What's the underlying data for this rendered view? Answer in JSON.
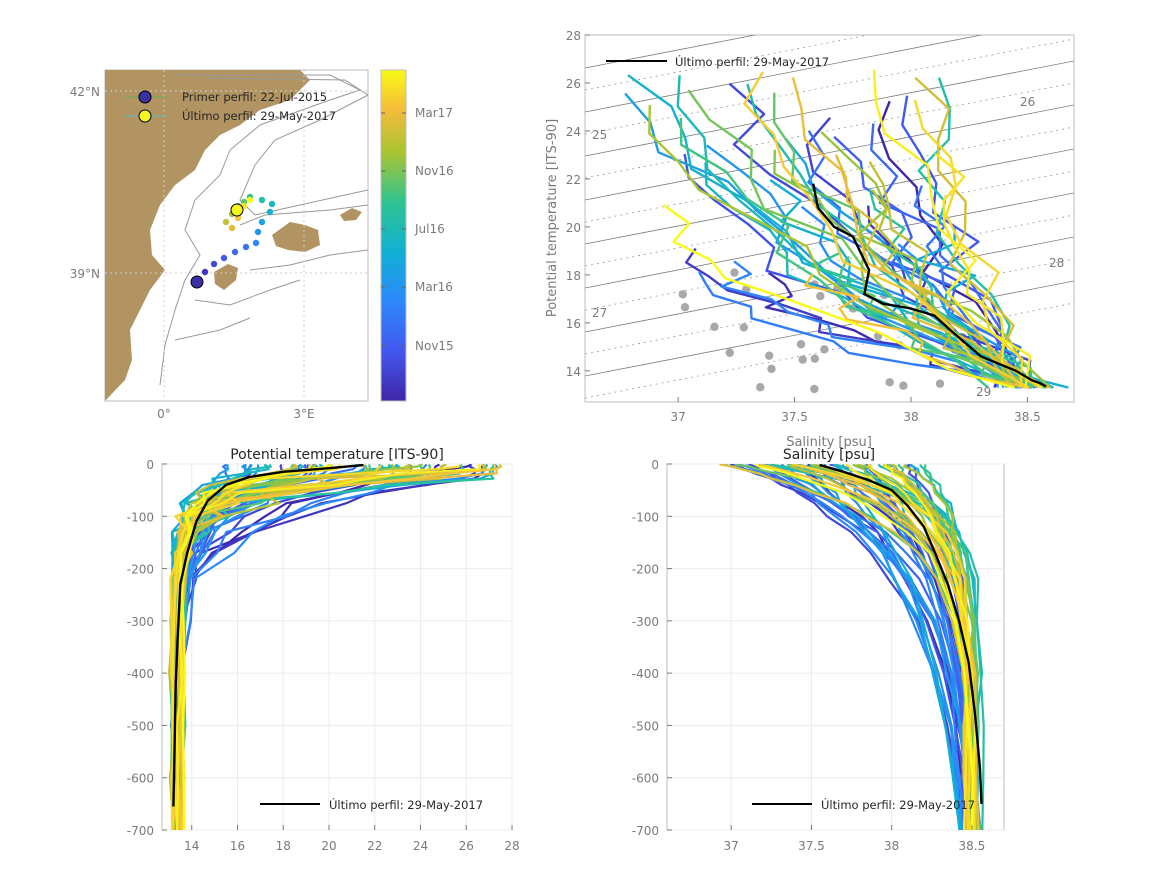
{
  "map": {
    "lat_ticks": [
      "42°N",
      "39°N"
    ],
    "lon_ticks": [
      "0°",
      "3°E"
    ],
    "legend": [
      {
        "label": "Primer perfil: 22-Jul-2015",
        "color": "#3a2fa5"
      },
      {
        "label": "Último perfil: 29-May-2017",
        "color": "#f5f520"
      }
    ],
    "colorbar_ticks": [
      "Mar17",
      "Nov16",
      "Jul16",
      "Mar16",
      "Nov15"
    ],
    "land_color": "#b19461"
  },
  "chart_data": [
    {
      "type": "scatter",
      "id": "ts",
      "title": "",
      "xlabel": "Salinity [psu]",
      "ylabel": "Potential temperature [ITS-90]",
      "xlim": [
        36.6,
        38.7
      ],
      "ylim": [
        12.7,
        28
      ],
      "xticks": [
        37,
        37.5,
        38,
        38.5
      ],
      "yticks": [
        14,
        16,
        18,
        20,
        22,
        24,
        26,
        28
      ],
      "density_labels": [
        "25",
        "26",
        "27",
        "28",
        "29"
      ],
      "legend": "Último perfil: 29-May-2017",
      "last_profile": {
        "x": [
          37.58,
          37.6,
          37.67,
          37.75,
          37.78,
          37.82,
          37.8,
          37.88,
          38.0,
          38.1,
          38.18,
          38.3,
          38.45,
          38.52,
          38.55,
          38.58
        ],
        "y": [
          21.8,
          20.8,
          20.0,
          19.6,
          19.0,
          18.2,
          17.2,
          16.8,
          16.6,
          16.3,
          15.6,
          14.6,
          14.0,
          13.6,
          13.5,
          13.35
        ]
      }
    },
    {
      "type": "line",
      "id": "temp",
      "title": "Potential temperature [ITS-90]",
      "xlim": [
        12.7,
        28
      ],
      "ylim": [
        -700,
        0
      ],
      "xticks": [
        14,
        16,
        18,
        20,
        22,
        24,
        26,
        28
      ],
      "yticks": [
        0,
        -100,
        -200,
        -300,
        -400,
        -500,
        -600,
        -700
      ],
      "legend": "Último perfil: 29-May-2017",
      "last_profile": {
        "x": [
          21.5,
          20.0,
          18.0,
          16.5,
          15.5,
          14.7,
          14.2,
          13.8,
          13.5,
          13.4,
          13.3,
          13.25,
          13.2
        ],
        "y": [
          -2,
          -8,
          -15,
          -25,
          -40,
          -70,
          -110,
          -170,
          -230,
          -320,
          -420,
          -540,
          -655
        ]
      }
    },
    {
      "type": "line",
      "id": "sal",
      "title": "Salinity [psu]",
      "xlim": [
        36.6,
        38.7
      ],
      "ylim": [
        -700,
        0
      ],
      "xticks": [
        37,
        37.5,
        38,
        38.5
      ],
      "yticks": [
        0,
        -100,
        -200,
        -300,
        -400,
        -500,
        -600,
        -700
      ],
      "legend": "Último perfil: 29-May-2017",
      "last_profile": {
        "x": [
          37.55,
          37.7,
          37.85,
          38.0,
          38.1,
          38.2,
          38.27,
          38.35,
          38.42,
          38.48,
          38.52,
          38.55,
          38.56
        ],
        "y": [
          -2,
          -15,
          -30,
          -50,
          -80,
          -120,
          -170,
          -230,
          -300,
          -380,
          -480,
          -580,
          -650
        ]
      }
    }
  ]
}
